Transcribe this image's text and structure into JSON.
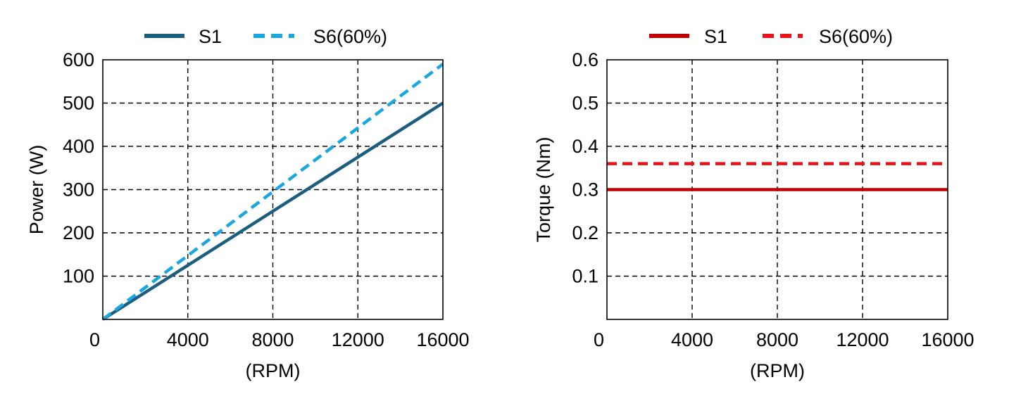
{
  "chart_data": [
    {
      "type": "line",
      "xlabel": "(RPM)",
      "ylabel": "Power (W)",
      "xlim": [
        0,
        16000
      ],
      "ylim": [
        0,
        600
      ],
      "x_ticks": [
        0,
        4000,
        8000,
        12000,
        16000
      ],
      "y_ticks": [
        100,
        200,
        300,
        400,
        500,
        600
      ],
      "grid": true,
      "legend_position": "top",
      "series": [
        {
          "name": "S1",
          "color": "#1b5e7e",
          "style": "solid",
          "x": [
            0,
            16000
          ],
          "y": [
            0,
            500
          ]
        },
        {
          "name": "S6(60%)",
          "color": "#1aa7e0",
          "style": "dashed",
          "x": [
            0,
            16000
          ],
          "y": [
            0,
            590
          ]
        }
      ]
    },
    {
      "type": "line",
      "xlabel": "(RPM)",
      "ylabel": "Torque  (Nm)",
      "xlim": [
        0,
        16000
      ],
      "ylim": [
        0,
        0.6
      ],
      "x_ticks": [
        0,
        4000,
        8000,
        12000,
        16000
      ],
      "y_ticks": [
        0.1,
        0.2,
        0.3,
        0.4,
        0.5,
        0.6
      ],
      "grid": true,
      "legend_position": "top",
      "series": [
        {
          "name": "S1",
          "color": "#c00000",
          "style": "solid",
          "x": [
            0,
            16000
          ],
          "y": [
            0.3,
            0.3
          ]
        },
        {
          "name": "S6(60%)",
          "color": "#e8141a",
          "style": "dashed",
          "x": [
            0,
            16000
          ],
          "y": [
            0.36,
            0.36
          ]
        }
      ]
    }
  ]
}
